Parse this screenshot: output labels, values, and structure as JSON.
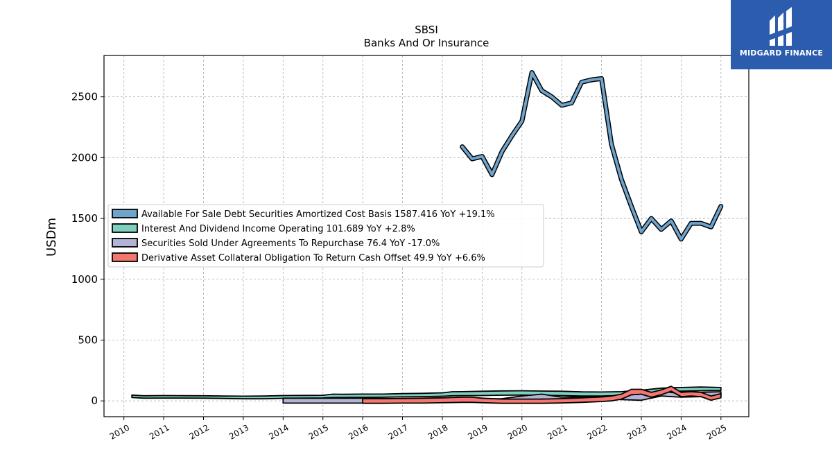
{
  "chart_data": {
    "type": "area",
    "title": "SBSI",
    "subtitle": "Banks And Or Insurance",
    "ylabel": "USDm",
    "xlabel": "",
    "xlim": [
      2009.5,
      2025.7
    ],
    "ylim": [
      -130,
      2840
    ],
    "grid": true,
    "legend_position": "center-left",
    "x_ticks": [
      2010,
      2011,
      2012,
      2013,
      2014,
      2015,
      2016,
      2017,
      2018,
      2019,
      2020,
      2021,
      2022,
      2023,
      2024,
      2025
    ],
    "x_tick_labels": [
      "2010",
      "2011",
      "2012",
      "2013",
      "2014",
      "2015",
      "2016",
      "2017",
      "2018",
      "2019",
      "2020",
      "2021",
      "2022",
      "2023",
      "2024",
      "2025"
    ],
    "y_ticks": [
      0,
      500,
      1000,
      1500,
      2000,
      2500
    ],
    "y_tick_labels": [
      "0",
      "500",
      "1000",
      "1500",
      "2000",
      "2500"
    ],
    "series": [
      {
        "name": "Available For Sale Debt Securities Amortized Cost Basis",
        "legend": "Available For Sale Debt Securities Amortized Cost Basis  1587.416 YoY +19.1%",
        "color": "#6ea3cc",
        "style": "line",
        "x": [
          2018.5,
          2018.75,
          2019.0,
          2019.25,
          2019.5,
          2019.75,
          2020.0,
          2020.25,
          2020.5,
          2020.75,
          2021.0,
          2021.25,
          2021.5,
          2021.75,
          2022.0,
          2022.25,
          2022.5,
          2022.75,
          2023.0,
          2023.25,
          2023.5,
          2023.75,
          2024.0,
          2024.25,
          2024.5,
          2024.75,
          2025.0
        ],
        "values": [
          2090,
          1990,
          2010,
          1860,
          2050,
          2180,
          2300,
          2700,
          2550,
          2500,
          2430,
          2450,
          2620,
          2640,
          2650,
          2110,
          1820,
          1600,
          1390,
          1500,
          1410,
          1480,
          1330,
          1460,
          1460,
          1430,
          1600
        ]
      },
      {
        "name": "Interest And Dividend Income Operating",
        "legend": "Interest And Dividend Income Operating  101.689 YoY +2.8%",
        "color": "#7fcfbf",
        "style": "band",
        "x": [
          2010.2,
          2010.5,
          2011.0,
          2011.5,
          2012.0,
          2012.5,
          2013.0,
          2013.5,
          2014.0,
          2014.5,
          2015.0,
          2015.25,
          2015.5,
          2016.0,
          2016.5,
          2017.0,
          2017.5,
          2018.0,
          2018.25,
          2018.5,
          2019.0,
          2019.5,
          2020.0,
          2020.5,
          2021.0,
          2021.5,
          2022.0,
          2022.5,
          2023.0,
          2023.5,
          2024.0,
          2024.5,
          2025.0
        ],
        "upper": [
          48,
          42,
          44,
          43,
          42,
          40,
          39,
          40,
          44,
          45,
          46,
          55,
          54,
          56,
          56,
          60,
          62,
          66,
          75,
          76,
          79,
          82,
          83,
          81,
          79,
          74,
          73,
          76,
          88,
          105,
          110,
          114,
          110
        ],
        "lower": [
          28,
          22,
          23,
          23,
          22,
          20,
          17,
          17,
          21,
          22,
          24,
          28,
          28,
          29,
          30,
          33,
          35,
          38,
          42,
          43,
          44,
          47,
          48,
          46,
          44,
          40,
          40,
          45,
          55,
          73,
          80,
          84,
          86
        ]
      },
      {
        "name": "Securities Sold Under Agreements To Repurchase",
        "legend": "Securities Sold Under Agreements To Repurchase  76.4 YoY -17.0%",
        "color": "#b3b3d6",
        "style": "band",
        "x": [
          2014.0,
          2014.5,
          2015.0,
          2015.5,
          2016.0,
          2016.5,
          2017.0,
          2017.5,
          2018.0,
          2018.5,
          2019.0,
          2019.5,
          2020.0,
          2020.5,
          2021.0,
          2021.5,
          2022.0,
          2022.5,
          2023.0,
          2023.5,
          2024.0,
          2024.5,
          2025.0
        ],
        "upper": [
          22,
          22,
          22,
          22,
          22,
          20,
          18,
          16,
          14,
          12,
          15,
          18,
          40,
          55,
          30,
          34,
          38,
          45,
          55,
          80,
          60,
          70,
          75
        ],
        "lower": [
          -18,
          -18,
          -18,
          -18,
          -18,
          -17,
          -16,
          -14,
          -12,
          -10,
          -5,
          -3,
          0,
          15,
          10,
          14,
          18,
          10,
          5,
          40,
          30,
          35,
          40
        ]
      },
      {
        "name": "Derivative Asset Collateral Obligation To Return Cash Offset",
        "legend": "Derivative Asset Collateral Obligation To Return Cash Offset  49.9 YoY +6.6%",
        "color": "#f4776f",
        "style": "band",
        "x": [
          2016.0,
          2016.5,
          2017.0,
          2017.5,
          2018.0,
          2018.5,
          2018.75,
          2019.0,
          2019.5,
          2020.0,
          2020.5,
          2021.0,
          2021.5,
          2022.0,
          2022.25,
          2022.5,
          2022.75,
          2023.0,
          2023.25,
          2023.5,
          2023.75,
          2024.0,
          2024.25,
          2024.5,
          2024.75,
          2025.0
        ],
        "upper": [
          18,
          18,
          20,
          22,
          25,
          30,
          30,
          22,
          15,
          15,
          15,
          18,
          25,
          32,
          40,
          55,
          95,
          95,
          70,
          90,
          120,
          70,
          75,
          70,
          40,
          60
        ],
        "lower": [
          -20,
          -20,
          -18,
          -18,
          -15,
          -12,
          -12,
          -15,
          -20,
          -20,
          -20,
          -17,
          -12,
          -5,
          0,
          15,
          50,
          55,
          30,
          50,
          80,
          35,
          40,
          35,
          5,
          25
        ]
      }
    ]
  },
  "logo": {
    "text": "MIDGARD FINANCE",
    "background": "#2c5cae"
  }
}
